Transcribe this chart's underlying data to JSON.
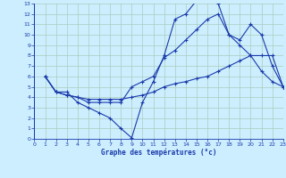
{
  "xlabel": "Graphe des températures (°c)",
  "bg_color": "#cceeff",
  "grid_color": "#aaccbb",
  "line_color": "#1a3aaa",
  "xlim": [
    0,
    23
  ],
  "ylim": [
    0,
    13
  ],
  "xticks": [
    0,
    1,
    2,
    3,
    4,
    5,
    6,
    7,
    8,
    9,
    10,
    11,
    12,
    13,
    14,
    15,
    16,
    17,
    18,
    19,
    20,
    21,
    22,
    23
  ],
  "yticks": [
    0,
    1,
    2,
    3,
    4,
    5,
    6,
    7,
    8,
    9,
    10,
    11,
    12,
    13
  ],
  "line1_x": [
    1,
    2,
    3,
    4,
    5,
    6,
    7,
    8,
    9,
    10,
    11,
    12,
    13,
    14,
    15,
    16,
    17,
    18,
    19,
    20,
    21,
    22,
    23
  ],
  "line1_y": [
    6,
    4.5,
    4.5,
    3.5,
    3.0,
    2.5,
    2.0,
    1.0,
    0.1,
    3.5,
    5.5,
    8.0,
    11.5,
    12.0,
    13.3,
    13.5,
    13.0,
    10.0,
    9.5,
    11.0,
    10.0,
    7.0,
    5.0
  ],
  "line2_x": [
    1,
    2,
    3,
    4,
    5,
    6,
    7,
    8,
    9,
    10,
    11,
    12,
    13,
    14,
    15,
    16,
    17,
    18,
    19,
    20,
    21,
    22,
    23
  ],
  "line2_y": [
    6,
    4.5,
    4.2,
    4.0,
    3.5,
    3.5,
    3.5,
    3.5,
    5.0,
    5.5,
    6.0,
    7.8,
    8.5,
    9.5,
    10.5,
    11.5,
    12.0,
    10.0,
    9.0,
    8.0,
    6.5,
    5.5,
    5.0
  ],
  "line3_x": [
    1,
    2,
    3,
    4,
    5,
    6,
    7,
    8,
    9,
    10,
    11,
    12,
    13,
    14,
    15,
    16,
    17,
    18,
    19,
    20,
    21,
    22,
    23
  ],
  "line3_y": [
    6,
    4.5,
    4.2,
    4.0,
    3.8,
    3.8,
    3.8,
    3.8,
    4.0,
    4.2,
    4.5,
    5.0,
    5.3,
    5.5,
    5.8,
    6.0,
    6.5,
    7.0,
    7.5,
    8.0,
    8.0,
    8.0,
    5.0
  ]
}
